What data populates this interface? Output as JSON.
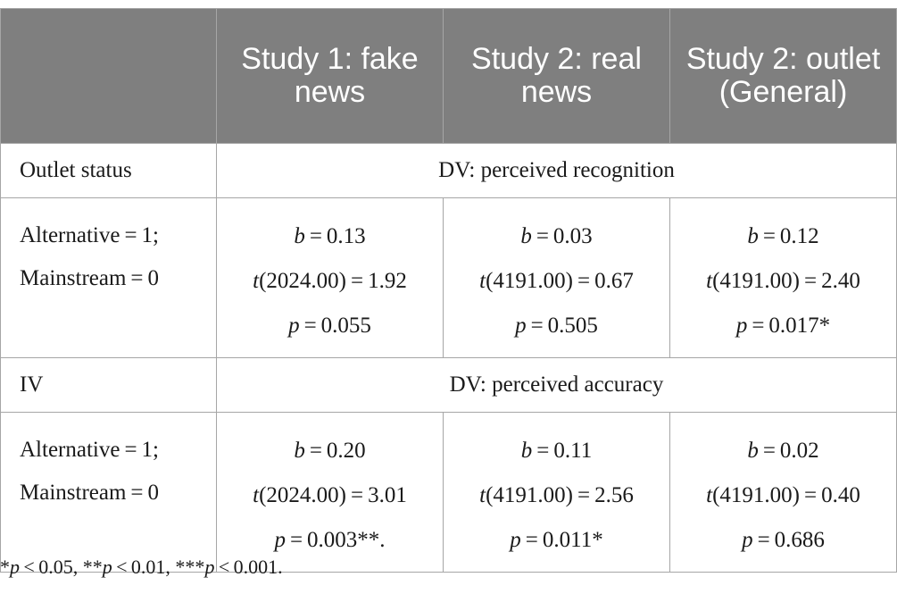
{
  "header": {
    "col0": "",
    "col1": "Study 1: fake news",
    "col2": "Study 2: real news",
    "col3": "Study 2: outlet (General)"
  },
  "sections": [
    {
      "label": "Outlet status",
      "dv": "DV: perceived recognition",
      "row": {
        "label_line1": "Alternative = 1;",
        "label_line2": "Mainstream = 0",
        "cells": [
          {
            "b": "b",
            "b_val": " = 0.13",
            "t": "t",
            "t_val": "(2024.00) = 1.92",
            "p": "p",
            "p_val": " = 0.055"
          },
          {
            "b": "b",
            "b_val": " = 0.03",
            "t": "t",
            "t_val": "(4191.00) = 0.67",
            "p": "p",
            "p_val": " = 0.505"
          },
          {
            "b": "b",
            "b_val": " = 0.12",
            "t": "t",
            "t_val": "(4191.00) = 2.40",
            "p": "p",
            "p_val": " = 0.017*"
          }
        ]
      }
    },
    {
      "label": "IV",
      "dv": "DV: perceived accuracy",
      "row": {
        "label_line1": "Alternative = 1;",
        "label_line2": "Mainstream = 0",
        "cells": [
          {
            "b": "b",
            "b_val": " = 0.20",
            "t": "t",
            "t_val": "(2024.00) = 3.01",
            "p": "p",
            "p_val": " = 0.003**."
          },
          {
            "b": "b",
            "b_val": " = 0.11",
            "t": "t",
            "t_val": "(4191.00) = 2.56",
            "p": "p",
            "p_val": " = 0.011*"
          },
          {
            "b": "b",
            "b_val": " = 0.02",
            "t": "t",
            "t_val": "(4191.00) = 0.40",
            "p": "p",
            "p_val": " = 0.686"
          }
        ]
      }
    }
  ],
  "footnote": {
    "s1": "*",
    "p1": "p",
    "v1": " < 0.05, **",
    "p2": "p",
    "v2": " < 0.01, ***",
    "p3": "p",
    "v3": " < 0.001."
  }
}
